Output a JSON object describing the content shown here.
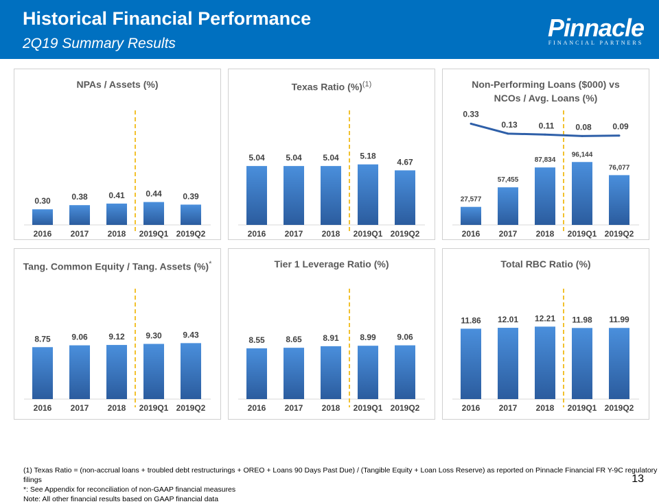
{
  "header": {
    "title": "Historical Financial Performance",
    "subtitle": "2Q19 Summary Results",
    "logo_text": "Pinnacle",
    "logo_tagline": "FINANCIAL PARTNERS"
  },
  "colors": {
    "header": "#0070c0",
    "bar_top": "#4a8fdc",
    "bar_bottom": "#2b5c9e",
    "line": "#2e5fa8",
    "divider": "#f2c12e"
  },
  "chart_data": [
    {
      "type": "bar",
      "title": "NPAs / Assets (%)",
      "categories": [
        "2016",
        "2017",
        "2018",
        "2019Q1",
        "2019Q2"
      ],
      "values": [
        0.3,
        0.38,
        0.41,
        0.44,
        0.39
      ],
      "labels": [
        "0.30",
        "0.38",
        "0.41",
        "0.44",
        "0.39"
      ],
      "ylim": [
        0,
        2.2
      ],
      "grid": false
    },
    {
      "type": "bar",
      "title": "Texas Ratio (%)",
      "title_sup": "(1)",
      "categories": [
        "2016",
        "2017",
        "2018",
        "2019Q1",
        "2019Q2"
      ],
      "values": [
        5.04,
        5.04,
        5.04,
        5.18,
        4.67
      ],
      "labels": [
        "5.04",
        "5.04",
        "5.04",
        "5.18",
        "4.67"
      ],
      "ylim": [
        0,
        9.8
      ],
      "grid": false
    },
    {
      "type": "bar+line",
      "title": "Non-Performing Loans ($000) vs NCOs / Avg. Loans (%)",
      "title_lines": [
        "Non-Performing Loans ($000) vs",
        "NCOs / Avg. Loans (%)"
      ],
      "categories": [
        "2016",
        "2017",
        "2018",
        "2019Q1",
        "2019Q2"
      ],
      "values": [
        27577,
        57455,
        87834,
        96144,
        76077
      ],
      "labels": [
        "27,577",
        "57,455",
        "87,834",
        "96,144",
        "76,077"
      ],
      "ylim": [
        0,
        175000
      ],
      "line_values": [
        0.33,
        0.13,
        0.11,
        0.08,
        0.09
      ],
      "line_labels": [
        "0.33",
        "0.13",
        "0.11",
        "0.08",
        "0.09"
      ],
      "y2lim": [
        -1.72,
        0.6
      ],
      "grid": false
    },
    {
      "type": "bar",
      "title": "Tang. Common Equity / Tang. Assets (%)",
      "title_sup": "*",
      "categories": [
        "2016",
        "2017",
        "2018",
        "2019Q1",
        "2019Q2"
      ],
      "values": [
        8.75,
        9.06,
        9.12,
        9.3,
        9.43
      ],
      "labels": [
        "8.75",
        "9.06",
        "9.12",
        "9.30",
        "9.43"
      ],
      "ylim": [
        0,
        18.6
      ],
      "grid": false
    },
    {
      "type": "bar",
      "title": "Tier 1 Leverage Ratio (%)",
      "categories": [
        "2016",
        "2017",
        "2018",
        "2019Q1",
        "2019Q2"
      ],
      "values": [
        8.55,
        8.65,
        8.91,
        8.99,
        9.06
      ],
      "labels": [
        "8.55",
        "8.65",
        "8.91",
        "8.99",
        "9.06"
      ],
      "ylim": [
        0,
        18.6
      ],
      "grid": false
    },
    {
      "type": "bar",
      "title": "Total RBC Ratio (%)",
      "categories": [
        "2016",
        "2017",
        "2018",
        "2019Q1",
        "2019Q2"
      ],
      "values": [
        11.86,
        12.01,
        12.21,
        11.98,
        11.99
      ],
      "labels": [
        "11.86",
        "12.01",
        "12.21",
        "11.98",
        "11.99"
      ],
      "ylim": [
        0,
        18.6
      ],
      "grid": false
    }
  ],
  "footnotes": [
    "(1)  Texas Ratio = (non-accrual loans + troubled debt restructurings + OREO + Loans 90 Days Past Due) / (Tangible Equity + Loan Loss Reserve) as reported on Pinnacle Financial FR Y-9C regulatory filings",
    "*: See Appendix for reconciliation of non-GAAP financial measures",
    "Note: All other financial results based on GAAP financial data"
  ],
  "page_number": "13"
}
